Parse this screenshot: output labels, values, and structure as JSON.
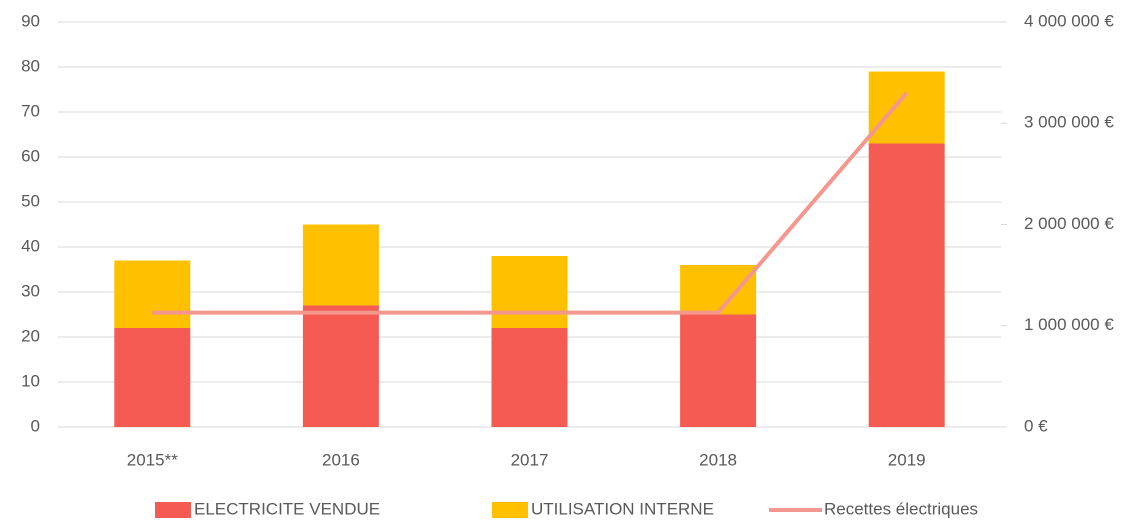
{
  "chart_data": {
    "type": "bar",
    "stacked": true,
    "categories": [
      "2015**",
      "2016",
      "2017",
      "2018",
      "2019"
    ],
    "series": [
      {
        "name": "ELECTRICITE VENDUE",
        "color": "#f55b52",
        "values": [
          22,
          27,
          22,
          25,
          63
        ]
      },
      {
        "name": "UTILISATION INTERNE",
        "color": "#ffc000",
        "values": [
          15,
          18,
          16,
          11,
          16
        ]
      },
      {
        "name": "Recettes électriques",
        "color": "#f4978e",
        "type": "line",
        "axis": "y2",
        "values": [
          1130000,
          1130000,
          1130000,
          1130000,
          3300000
        ]
      }
    ],
    "ylim": [
      0,
      90
    ],
    "yticks": [
      0,
      10,
      20,
      30,
      40,
      50,
      60,
      70,
      80,
      90
    ],
    "y2lim": [
      0,
      4000000
    ],
    "y2ticks": [
      {
        "value": 0,
        "label": "0 €"
      },
      {
        "value": 1000000,
        "label": "1 000 000 €"
      },
      {
        "value": 2000000,
        "label": "2 000 000 €"
      },
      {
        "value": 3000000,
        "label": "3 000 000 €"
      },
      {
        "value": 4000000,
        "label": "4 000 000 €"
      }
    ],
    "grid": true,
    "legend": "bottom"
  }
}
